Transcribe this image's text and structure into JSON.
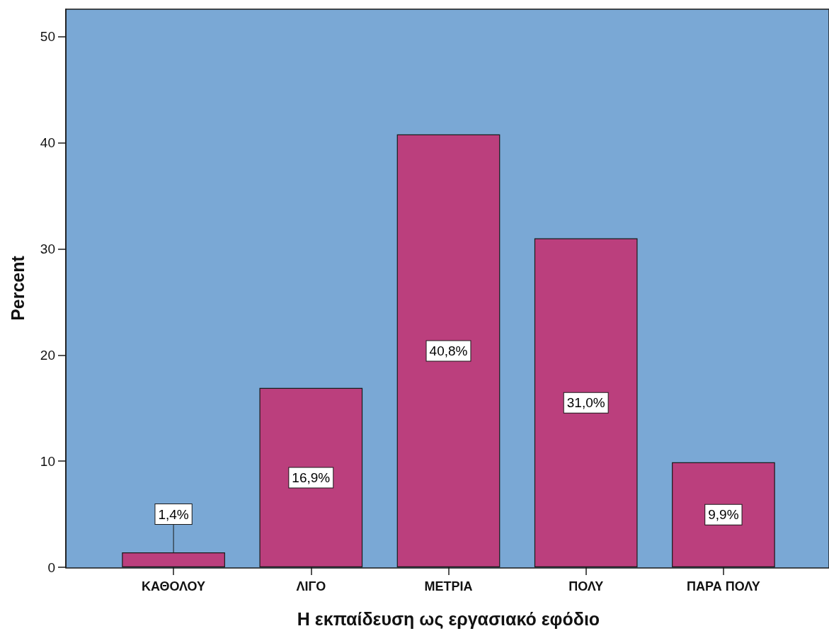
{
  "chart_data": {
    "type": "bar",
    "xlabel": "Η εκπαίδευση ως εργασιακό εφόδιο",
    "ylabel": "Percent",
    "categories": [
      "ΚΑΘΟΛΟΥ",
      "ΛΙΓΟ",
      "ΜΕΤΡΙΑ",
      "ΠΟΛΥ",
      "ΠΑΡΑ ΠΟΛΥ"
    ],
    "values": [
      1.4,
      16.9,
      40.8,
      31.0,
      9.9
    ],
    "value_labels": [
      "1,4%",
      "16,9%",
      "40,8%",
      "31,0%",
      "9,9%"
    ],
    "color": "#bb3f7d",
    "ylim": [
      0,
      52.6
    ],
    "yticks": [
      0,
      10,
      20,
      30,
      40,
      50
    ]
  }
}
